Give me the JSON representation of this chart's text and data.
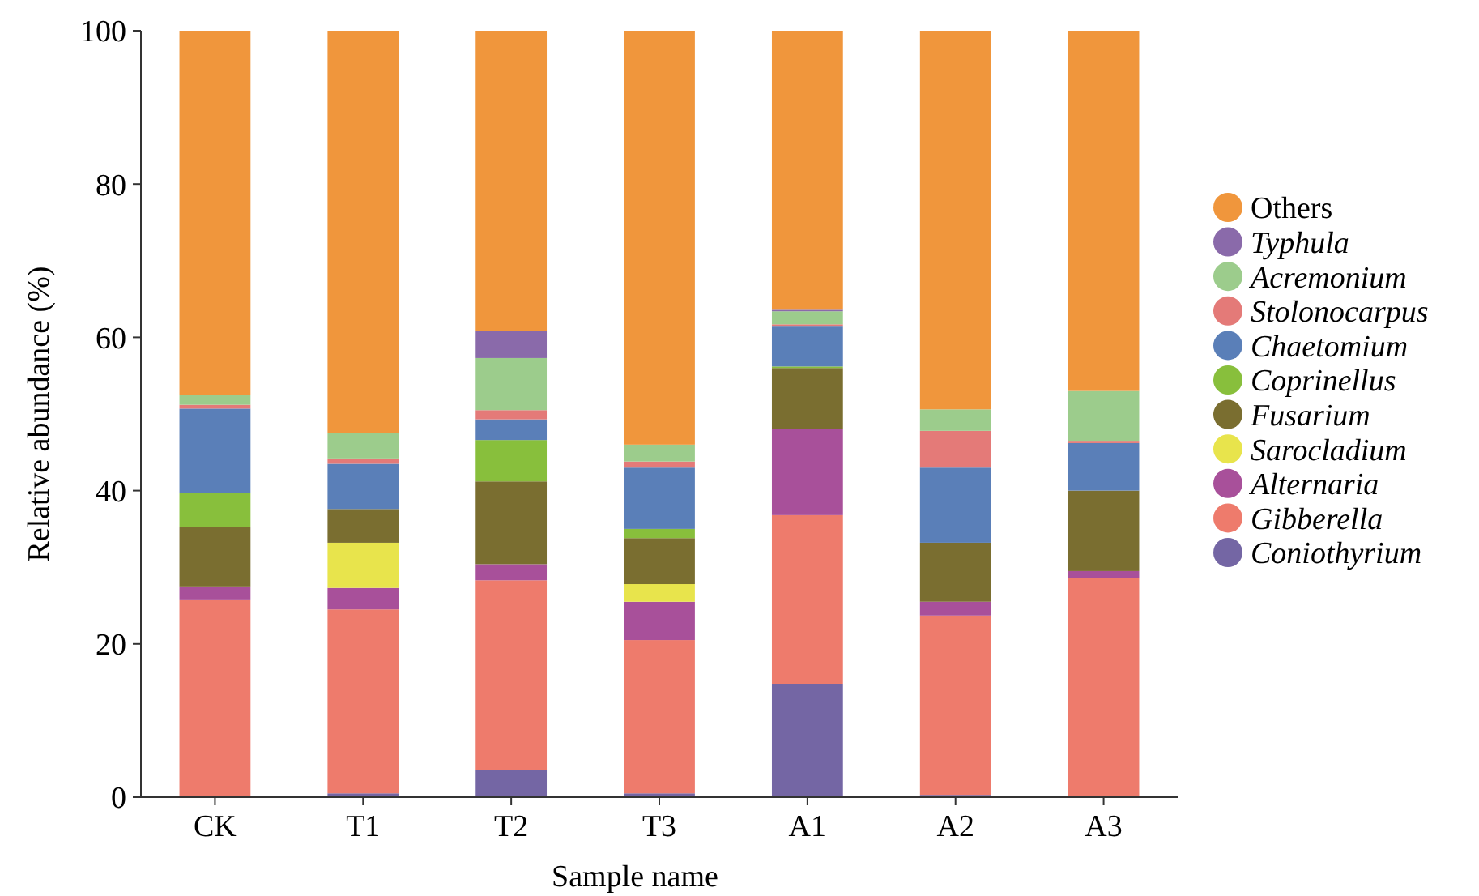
{
  "chart_data": {
    "type": "bar",
    "stacked": true,
    "xlabel": "Sample name",
    "ylabel": "Relative abundance (%)",
    "categories": [
      "CK",
      "T1",
      "T2",
      "T3",
      "A1",
      "A2",
      "A3"
    ],
    "ylim": [
      0,
      100
    ],
    "yticks": [
      0,
      20,
      40,
      60,
      80,
      100
    ],
    "grid": false,
    "legend": "right",
    "series": [
      {
        "name": "Coniothyrium",
        "color": "#7466a4",
        "values": [
          0.2,
          0.5,
          3.5,
          0.5,
          14.8,
          0.3,
          0
        ]
      },
      {
        "name": "Gibberella",
        "color": "#ee7b6c",
        "values": [
          25.5,
          24,
          24.8,
          20,
          22,
          23.4,
          28.6
        ]
      },
      {
        "name": "Alternaria",
        "color": "#a8509a",
        "values": [
          1.8,
          2.8,
          2.1,
          5,
          11.2,
          1.8,
          0.9
        ]
      },
      {
        "name": "Sarocladium",
        "color": "#e8e44c",
        "values": [
          0,
          5.9,
          0,
          2.3,
          0,
          0,
          0
        ]
      },
      {
        "name": "Fusarium",
        "color": "#7a6e30",
        "values": [
          7.7,
          4.4,
          10.8,
          6,
          8,
          7.7,
          10.5
        ]
      },
      {
        "name": "Coprinellus",
        "color": "#88bf3c",
        "values": [
          4.5,
          0,
          5.4,
          1.2,
          0.2,
          0,
          0
        ]
      },
      {
        "name": "Chaetomium",
        "color": "#5a7fb8",
        "values": [
          11,
          5.9,
          2.7,
          8,
          5.2,
          9.8,
          6.2
        ]
      },
      {
        "name": "Stolonocarpus",
        "color": "#e47a78",
        "values": [
          0.5,
          0.7,
          1.2,
          0.8,
          0.3,
          4.8,
          0.3
        ]
      },
      {
        "name": "Acremonium",
        "color": "#9ccc8c",
        "values": [
          1.3,
          3.3,
          6.8,
          2.2,
          1.7,
          2.8,
          6.5
        ]
      },
      {
        "name": "Typhula",
        "color": "#8a6aaa",
        "values": [
          0,
          0,
          3.5,
          0,
          0.2,
          0,
          0
        ]
      },
      {
        "name": "Others",
        "color": "#f0963c",
        "values": [
          47.5,
          52.5,
          39.2,
          54,
          36.4,
          49.4,
          47
        ]
      }
    ]
  }
}
